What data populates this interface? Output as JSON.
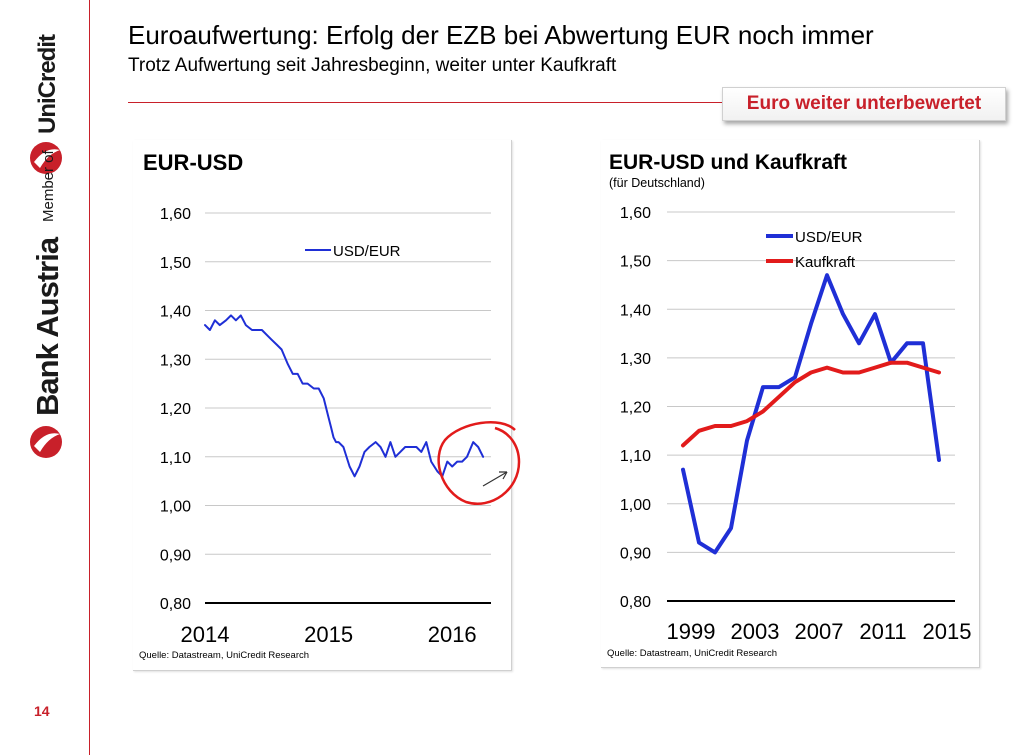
{
  "header": {
    "title": "Euroaufwertung: Erfolg der EZB bei Abwertung EUR noch immer",
    "subtitle": "Trotz Aufwertung seit Jahresbeginn,  weiter unter Kaufkraft",
    "badge": "Euro weiter unterbewertet"
  },
  "branding": {
    "member_of": "Member of",
    "unicredit": "UniCredit",
    "bank_austria": "Bank Austria",
    "brand_color": "#c8202a"
  },
  "footer": {
    "page_number": "14"
  },
  "colors": {
    "accent": "#c8202a",
    "series_blue": "#1f2fd6",
    "series_red": "#e21b1b",
    "grid": "#c8c8c8"
  },
  "chart_data": [
    {
      "type": "line",
      "title": "EUR-USD",
      "x_ticks": [
        "2014",
        "2015",
        "2016"
      ],
      "x_range": [
        2014.0,
        2016.33
      ],
      "y_ticks": [
        "1,60",
        "1,50",
        "1,40",
        "1,30",
        "1,20",
        "1,10",
        "1,00",
        "0,90",
        "0,80"
      ],
      "ylim": [
        0.8,
        1.6
      ],
      "grid": true,
      "legend_position": "top-right",
      "source": "Quelle: Datastream, UniCredit Research",
      "series": [
        {
          "name": "USD/EUR",
          "color": "#1f2fd6",
          "x": [
            2014.0,
            2014.04,
            2014.08,
            2014.12,
            2014.17,
            2014.21,
            2014.25,
            2014.29,
            2014.33,
            2014.38,
            2014.42,
            2014.46,
            2014.5,
            2014.54,
            2014.58,
            2014.62,
            2014.67,
            2014.71,
            2014.75,
            2014.79,
            2014.83,
            2014.88,
            2014.92,
            2014.96,
            2015.0,
            2015.02,
            2015.04,
            2015.06,
            2015.08,
            2015.12,
            2015.17,
            2015.21,
            2015.25,
            2015.29,
            2015.33,
            2015.38,
            2015.42,
            2015.46,
            2015.5,
            2015.54,
            2015.58,
            2015.62,
            2015.67,
            2015.71,
            2015.75,
            2015.79,
            2015.83,
            2015.88,
            2015.92,
            2015.96,
            2016.0,
            2016.04,
            2016.08,
            2016.12,
            2016.17,
            2016.21,
            2016.25
          ],
          "y": [
            1.37,
            1.36,
            1.38,
            1.37,
            1.38,
            1.39,
            1.38,
            1.39,
            1.37,
            1.36,
            1.36,
            1.36,
            1.35,
            1.34,
            1.33,
            1.32,
            1.29,
            1.27,
            1.27,
            1.25,
            1.25,
            1.24,
            1.24,
            1.22,
            1.18,
            1.16,
            1.14,
            1.13,
            1.13,
            1.12,
            1.08,
            1.06,
            1.08,
            1.11,
            1.12,
            1.13,
            1.12,
            1.1,
            1.13,
            1.1,
            1.11,
            1.12,
            1.12,
            1.12,
            1.11,
            1.13,
            1.09,
            1.07,
            1.06,
            1.09,
            1.08,
            1.09,
            1.09,
            1.1,
            1.13,
            1.12,
            1.1
          ]
        }
      ]
    },
    {
      "type": "line",
      "title": "EUR-USD und Kaufkraft",
      "subtitle": "(für Deutschland)",
      "x_ticks": [
        "1999",
        "2003",
        "2007",
        "2011",
        "2015"
      ],
      "xlim": [
        1998,
        2016
      ],
      "y_ticks": [
        "1,60",
        "1,50",
        "1,40",
        "1,30",
        "1,20",
        "1,10",
        "1,00",
        "0,90",
        "0,80"
      ],
      "ylim": [
        0.8,
        1.6
      ],
      "grid": true,
      "legend_position": "top-center",
      "source": "Quelle: Datastream, UniCredit Research",
      "series": [
        {
          "name": "USD/EUR",
          "color": "#1f2fd6",
          "x": [
            1999,
            2000,
            2001,
            2002,
            2003,
            2004,
            2005,
            2006,
            2007,
            2008,
            2009,
            2010,
            2011,
            2012,
            2013,
            2014,
            2015
          ],
          "y": [
            1.07,
            0.92,
            0.9,
            0.95,
            1.13,
            1.24,
            1.24,
            1.26,
            1.37,
            1.47,
            1.39,
            1.33,
            1.39,
            1.29,
            1.33,
            1.33,
            1.09
          ]
        },
        {
          "name": "Kaufkraft",
          "color": "#e21b1b",
          "x": [
            1999,
            2000,
            2001,
            2002,
            2003,
            2004,
            2005,
            2006,
            2007,
            2008,
            2009,
            2010,
            2011,
            2012,
            2013,
            2014,
            2015
          ],
          "y": [
            1.12,
            1.15,
            1.16,
            1.16,
            1.17,
            1.19,
            1.22,
            1.25,
            1.27,
            1.28,
            1.27,
            1.27,
            1.28,
            1.29,
            1.29,
            1.28,
            1.27
          ]
        }
      ]
    }
  ]
}
